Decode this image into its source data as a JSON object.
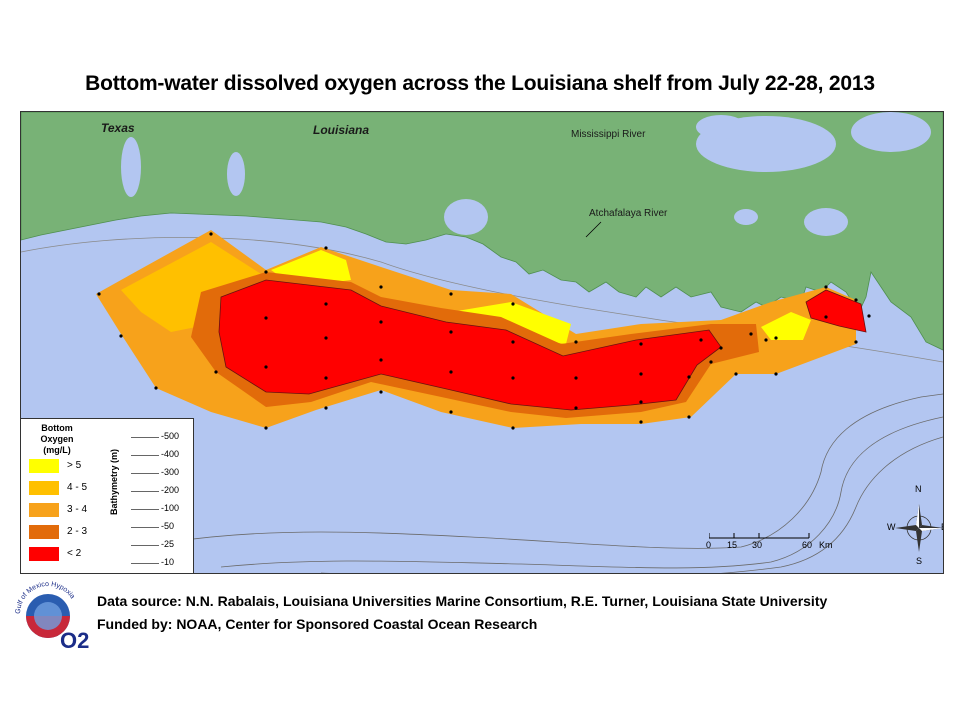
{
  "title": "Bottom-water dissolved oxygen across the Louisiana shelf from July 22-28, 2013",
  "map": {
    "labels": {
      "texas": "Texas",
      "louisiana": "Louisiana",
      "mississippi_river": "Mississippi River",
      "atchafalaya_river": "Atchafalaya River"
    },
    "colors": {
      "water": "#b3c6f1",
      "land": "#78b276",
      "gt5": "#ffff00",
      "c4_5": "#ffc000",
      "c3_4": "#f7a21b",
      "c2_3": "#e26b0a",
      "lt2": "#ff0000"
    }
  },
  "legend": {
    "title_line1": "Bottom Oxygen",
    "title_line2": "(mg/L)",
    "items": [
      {
        "label": "> 5",
        "color": "#ffff00"
      },
      {
        "label": "4 - 5",
        "color": "#ffc000"
      },
      {
        "label": "3 - 4",
        "color": "#f7a21b"
      },
      {
        "label": "2 - 3",
        "color": "#e26b0a"
      },
      {
        "label": "< 2",
        "color": "#ff0000"
      }
    ],
    "bathymetry_title": "Bathymetry (m)",
    "bathymetry": [
      "-500",
      "-400",
      "-300",
      "-200",
      "-100",
      "-50",
      "-25",
      "-10"
    ]
  },
  "scale": {
    "ticks": [
      "0",
      "15",
      "30",
      "60"
    ],
    "unit": "Km"
  },
  "compass": {
    "n": "N",
    "s": "S",
    "e": "E",
    "w": "W"
  },
  "logo": {
    "text": "Gulf of Mexico Hypoxia",
    "mark": "O2"
  },
  "footer": {
    "line1": "Data source: N.N. Rabalais, Louisiana Universities Marine Consortium, R.E. Turner, Louisiana State University",
    "line2": "Funded by: NOAA, Center for Sponsored Coastal Ocean Research"
  }
}
